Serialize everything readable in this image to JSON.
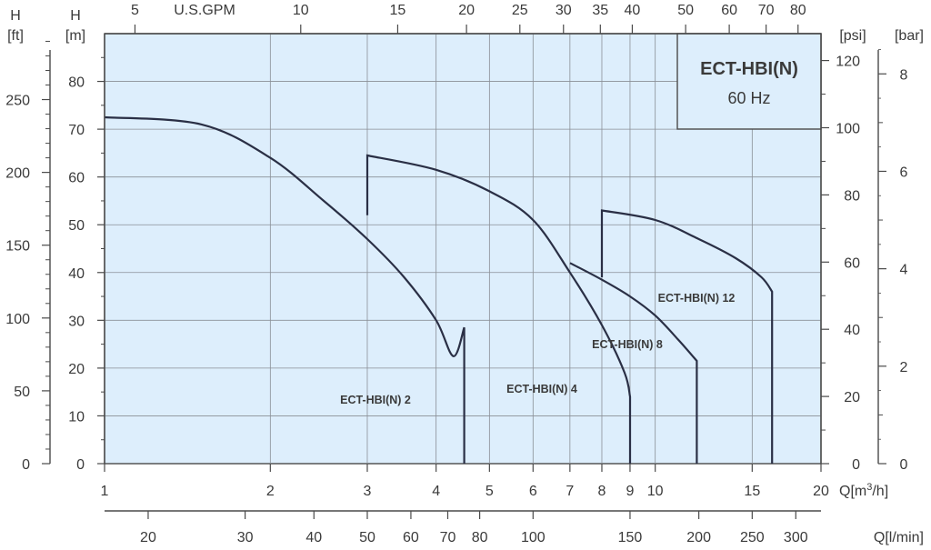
{
  "chart_data": {
    "type": "line",
    "x_scale": "log",
    "xlim": [
      1,
      20
    ],
    "ylim": [
      0,
      90
    ],
    "grid": true,
    "title_box": {
      "title": "ECT-HBI(N)",
      "subtitle": "60 Hz"
    },
    "axes": {
      "left_ft": {
        "unit_top": "H",
        "unit_bottom": "[ft]",
        "ticks": [
          "0",
          "50",
          "100",
          "150",
          "200",
          "250"
        ]
      },
      "left_m": {
        "unit_top": "H",
        "unit_bottom": "[m]",
        "ticks": [
          "0",
          "10",
          "20",
          "30",
          "40",
          "50",
          "60",
          "70",
          "80"
        ]
      },
      "right_psi": {
        "unit": "[psi]",
        "ticks": [
          "0",
          "20",
          "40",
          "60",
          "80",
          "100",
          "120"
        ]
      },
      "right_bar": {
        "unit": "[bar]",
        "ticks": [
          "0",
          "2",
          "4",
          "6",
          "8"
        ]
      },
      "top_gpm": {
        "unit": "U.S.GPM",
        "ticks": [
          "5",
          "10",
          "15",
          "20",
          "25",
          "30",
          "35",
          "40",
          "50",
          "60",
          "70",
          "80"
        ]
      },
      "bottom_m3h": {
        "unit_prefix": "Q[m",
        "unit_sup": "3",
        "unit_suffix": "/h]",
        "ticks": [
          "1",
          "2",
          "3",
          "4",
          "5",
          "6",
          "7",
          "8",
          "9",
          "10",
          "15",
          "20"
        ]
      },
      "bottom_lmin": {
        "unit": "Q[l/min]",
        "ticks": [
          "20",
          "30",
          "40",
          "50",
          "60",
          "70",
          "80",
          "100",
          "150",
          "200",
          "250",
          "300"
        ]
      }
    },
    "series": [
      {
        "name": "ECT-HBI(N) 2",
        "x": [
          1,
          1.5,
          2,
          2.5,
          3,
          3.5,
          4,
          4.3,
          4.5,
          4.5
        ],
        "y": [
          72.5,
          71,
          64,
          55,
          47,
          39,
          30,
          22.5,
          28.5,
          0
        ]
      },
      {
        "name": "ECT-HBI(N) 4",
        "x": [
          3,
          3,
          4,
          5,
          6,
          7,
          8,
          8.8,
          9,
          9
        ],
        "y": [
          52,
          64.5,
          61.5,
          57,
          51,
          40,
          29,
          19,
          14,
          0
        ]
      },
      {
        "name": "ECT-HBI(N) 8",
        "x": [
          7,
          8,
          9,
          10,
          11,
          11.9,
          11.9
        ],
        "y": [
          42,
          38.5,
          35,
          31,
          26,
          21.5,
          0
        ]
      },
      {
        "name": "ECT-HBI(N) 12",
        "x": [
          8,
          8,
          10,
          12,
          14,
          15.6,
          16.3,
          16.3
        ],
        "y": [
          39,
          53,
          51,
          47,
          43,
          39,
          36,
          0
        ]
      }
    ]
  }
}
